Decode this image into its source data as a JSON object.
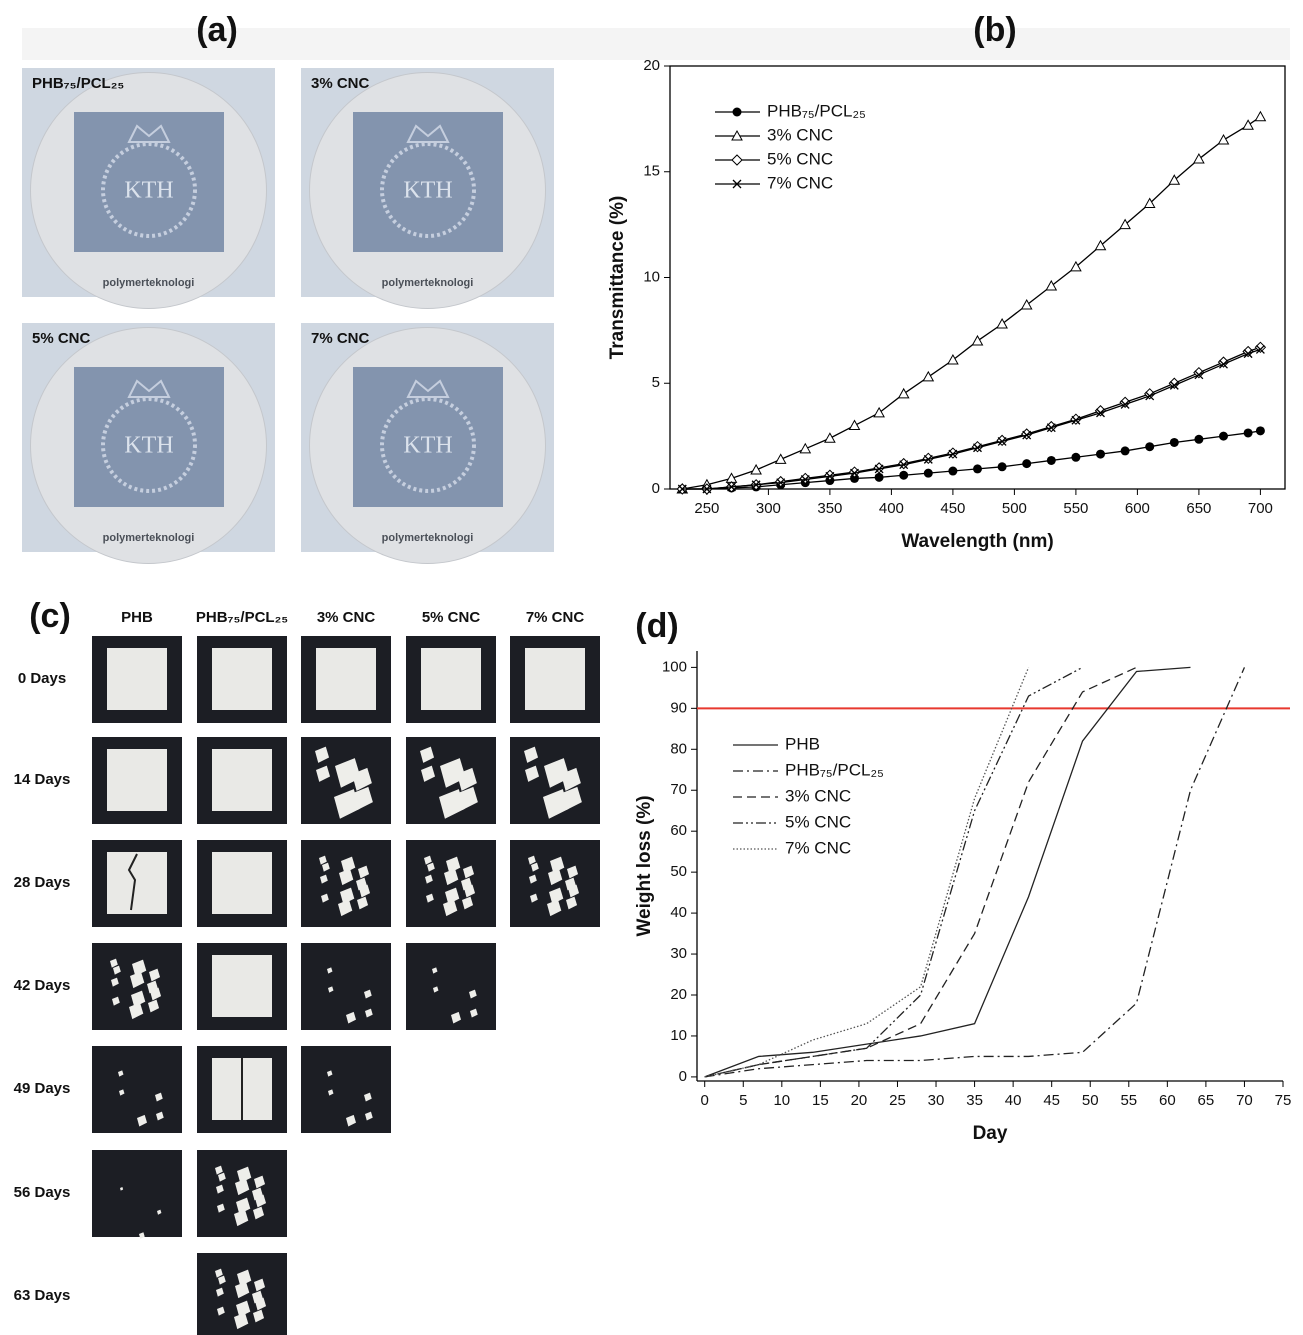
{
  "panels": {
    "a": "(a)",
    "b": "(b)",
    "c": "(c)",
    "d": "(d)"
  },
  "photo_grid": {
    "labels": [
      "PHB₇₅/PCL₂₅",
      "3% CNC",
      "5% CNC",
      "7% CNC"
    ],
    "logo": "KTH",
    "caption": "polymerteknologi"
  },
  "degradation_grid": {
    "columns": [
      "PHB",
      "PHB₇₅/PCL₂₅",
      "3% CNC",
      "5% CNC",
      "7% CNC"
    ],
    "rows": [
      "0 Days",
      "14 Days",
      "28 Days",
      "42 Days",
      "49 Days",
      "56 Days",
      "63 Days"
    ]
  },
  "chart_data": [
    {
      "type": "line",
      "x_label": "Wavelength (nm)",
      "y_label": "Transmittance (%)",
      "frame": "box",
      "legend": "upper left",
      "x": [
        230,
        250,
        270,
        290,
        310,
        330,
        350,
        370,
        390,
        410,
        430,
        450,
        470,
        490,
        510,
        530,
        550,
        570,
        590,
        610,
        630,
        650,
        670,
        690,
        700
      ],
      "xlim": [
        220,
        720
      ],
      "ylim": [
        0,
        20
      ],
      "xticks": [
        250,
        300,
        350,
        400,
        450,
        500,
        550,
        600,
        650,
        700
      ],
      "yticks": [
        0,
        5,
        10,
        15,
        20
      ],
      "series": [
        {
          "name": "PHB₇₅/PCL₂₅",
          "color": "#000000",
          "marker": "filled-circle",
          "style": "solid",
          "values": [
            0,
            0,
            0.05,
            0.1,
            0.2,
            0.3,
            0.4,
            0.5,
            0.55,
            0.65,
            0.75,
            0.85,
            0.95,
            1.05,
            1.2,
            1.35,
            1.5,
            1.65,
            1.8,
            2.0,
            2.2,
            2.35,
            2.5,
            2.65,
            2.75
          ]
        },
        {
          "name": "3% CNC",
          "color": "#000000",
          "marker": "open-triangle",
          "style": "solid",
          "values": [
            0,
            0.2,
            0.5,
            0.9,
            1.4,
            1.9,
            2.4,
            3.0,
            3.6,
            4.5,
            5.3,
            6.1,
            7.0,
            7.8,
            8.7,
            9.6,
            10.5,
            11.5,
            12.5,
            13.5,
            14.6,
            15.6,
            16.5,
            17.2,
            17.6
          ]
        },
        {
          "name": "5% CNC",
          "color": "#000000",
          "marker": "open-diamond",
          "style": "solid",
          "values": [
            0,
            0,
            0.1,
            0.2,
            0.35,
            0.5,
            0.65,
            0.8,
            1.0,
            1.2,
            1.45,
            1.7,
            2.0,
            2.3,
            2.6,
            2.95,
            3.3,
            3.7,
            4.1,
            4.5,
            5.0,
            5.5,
            6.0,
            6.5,
            6.7
          ]
        },
        {
          "name": "7% CNC",
          "color": "#000000",
          "marker": "cross",
          "style": "solid",
          "values": [
            0,
            0,
            0.1,
            0.2,
            0.3,
            0.45,
            0.6,
            0.75,
            0.95,
            1.15,
            1.4,
            1.65,
            1.95,
            2.25,
            2.55,
            2.9,
            3.25,
            3.6,
            4.0,
            4.4,
            4.9,
            5.4,
            5.9,
            6.4,
            6.6
          ]
        }
      ]
    },
    {
      "type": "line",
      "x_label": "Day",
      "y_label": "Weight loss (%)",
      "frame": "axes",
      "legend": "center left",
      "x": [
        0,
        7,
        14,
        21,
        28,
        35,
        42,
        49,
        56,
        63,
        70
      ],
      "xlim": [
        -1,
        75
      ],
      "ylim": [
        -1,
        104
      ],
      "xticks": [
        0,
        5,
        10,
        15,
        20,
        25,
        30,
        35,
        40,
        45,
        50,
        55,
        60,
        65,
        70,
        75
      ],
      "yticks": [
        0,
        10,
        20,
        30,
        40,
        50,
        60,
        70,
        80,
        90,
        100
      ],
      "reference_line": {
        "value": 90,
        "color": "#e8392f"
      },
      "series": [
        {
          "name": "PHB",
          "color": "#222222",
          "style": "solid",
          "values": [
            0,
            5,
            6,
            8,
            10,
            13,
            44,
            82,
            99,
            100,
            null
          ]
        },
        {
          "name": "PHB₇₅/PCL₂₅",
          "color": "#222222",
          "style": "dashdot",
          "values": [
            0,
            2,
            3,
            4,
            4,
            5,
            5,
            6,
            18,
            70,
            100
          ]
        },
        {
          "name": "3% CNC",
          "color": "#222222",
          "style": "dashed",
          "values": [
            0,
            3,
            5,
            7,
            13,
            35,
            72,
            94,
            100,
            null,
            null
          ]
        },
        {
          "name": "5% CNC",
          "color": "#222222",
          "style": "dashdotdot",
          "values": [
            0,
            3,
            5,
            7,
            20,
            65,
            93,
            100,
            null,
            null,
            null
          ]
        },
        {
          "name": "7% CNC",
          "color": "#555555",
          "style": "dotted",
          "values": [
            0,
            3,
            9,
            13,
            22,
            68,
            100,
            null,
            null,
            null,
            null
          ]
        }
      ]
    }
  ]
}
